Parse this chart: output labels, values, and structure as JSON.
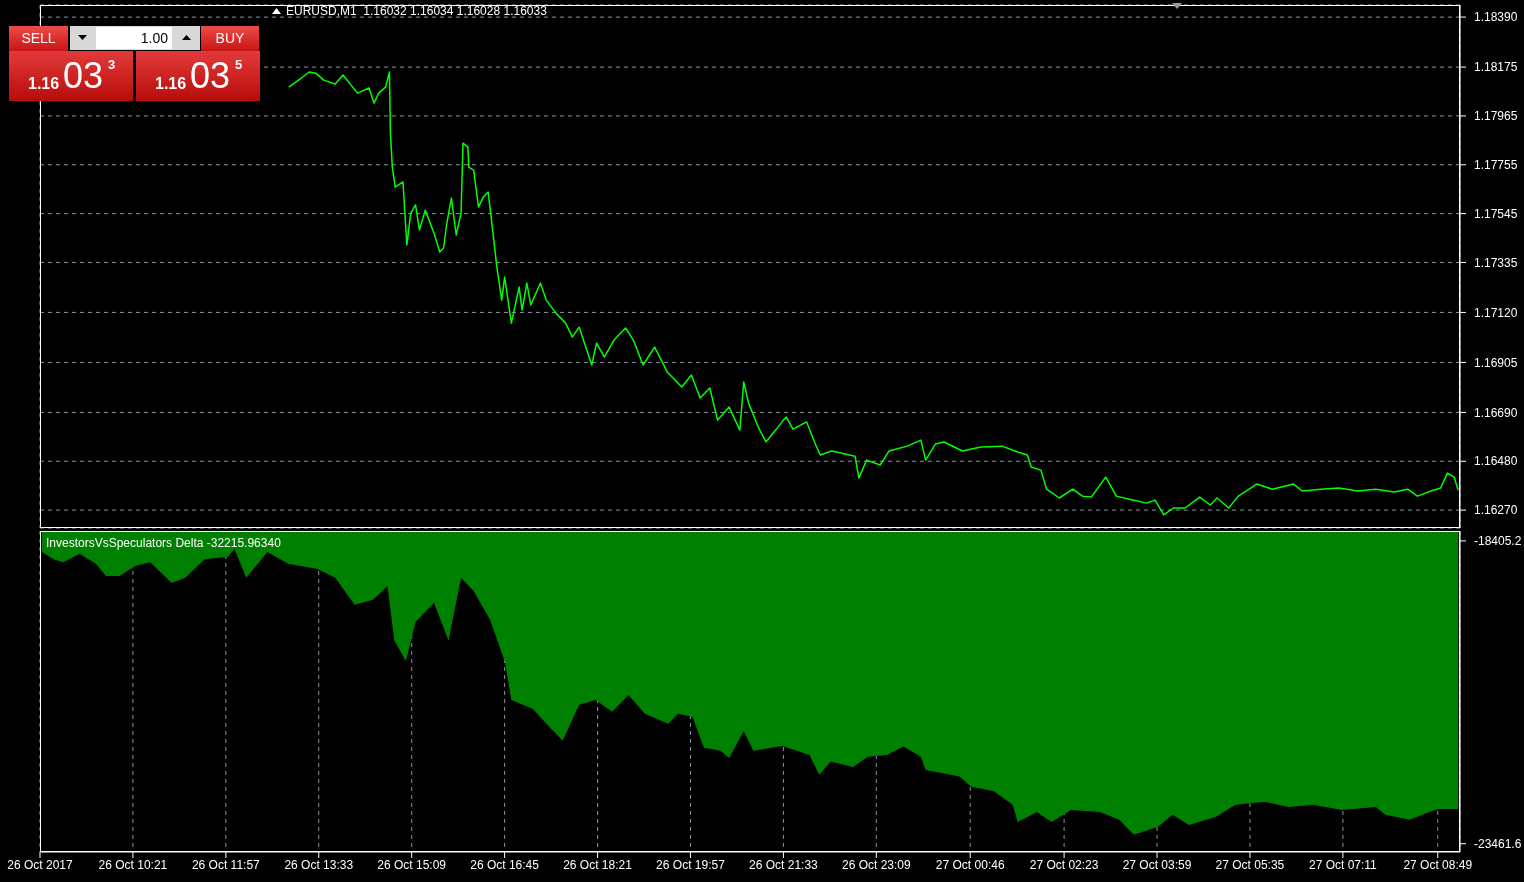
{
  "chart_data": [
    {
      "type": "line",
      "title": "EURUSD,M1  1.16032 1.16034 1.16028 1.16033",
      "color": "#00ff00",
      "grid": true,
      "tick_labels": "y",
      "annotations": [
        "SELL",
        "1.00",
        "BUY",
        "1.16",
        "03",
        "3",
        "1.16",
        "03",
        "5"
      ],
      "xlim": [
        "2017-10-26T08:45",
        "2017-10-27T09:12"
      ],
      "xticks": [
        {
          "value": "2017-10-26T08:45",
          "label": null
        },
        {
          "value": "2017-10-26T10:21",
          "label": null
        },
        {
          "value": "2017-10-26T11:57",
          "label": null
        },
        {
          "value": "2017-10-26T13:33",
          "label": null
        },
        {
          "value": "2017-10-26T15:09",
          "label": null
        },
        {
          "value": "2017-10-26T16:45",
          "label": null
        },
        {
          "value": "2017-10-26T18:21",
          "label": null
        },
        {
          "value": "2017-10-26T19:57",
          "label": null
        },
        {
          "value": "2017-10-26T21:33",
          "label": null
        },
        {
          "value": "2017-10-26T23:09",
          "label": null
        },
        {
          "value": "2017-10-27T00:46",
          "label": null
        },
        {
          "value": "2017-10-27T02:23",
          "label": null
        },
        {
          "value": "2017-10-27T03:59",
          "label": null
        },
        {
          "value": "2017-10-27T05:35",
          "label": null
        },
        {
          "value": "2017-10-27T07:11",
          "label": null
        },
        {
          "value": "2017-10-27T08:49",
          "label": null
        }
      ],
      "ylim": [
        1.16193,
        1.18442
      ],
      "yticks": [
        {
          "value": 1.1839,
          "label": "1.18390"
        },
        1.18175,
        1.17965,
        1.17755,
        1.17545,
        1.17335,
        {
          "value": 1.1712,
          "label": "1.17120"
        },
        1.16905,
        {
          "value": 1.1669,
          "label": "1.16690"
        },
        {
          "value": 1.1648,
          "label": "1.16480"
        },
        {
          "value": 1.1627,
          "label": "1.16270"
        }
      ],
      "x": [
        "2017-10-26T13:02",
        "2017-10-26T13:15",
        "2017-10-26T13:23",
        "2017-10-26T13:30",
        "2017-10-26T13:38",
        "2017-10-26T13:50",
        "2017-10-26T13:58",
        "2017-10-26T14:13",
        "2017-10-26T14:25",
        "2017-10-26T14:30",
        "2017-10-26T14:35",
        "2017-10-26T14:42",
        "2017-10-26T14:46",
        "2017-10-26T14:47",
        "2017-10-26T14:49",
        "2017-10-26T14:52",
        "2017-10-26T15:00",
        "2017-10-26T15:04",
        "2017-10-26T15:08",
        "2017-10-26T15:13",
        "2017-10-26T15:17",
        "2017-10-26T15:23",
        "2017-10-26T15:32",
        "2017-10-26T15:38",
        "2017-10-26T15:42",
        "2017-10-26T15:45",
        "2017-10-26T15:50",
        "2017-10-26T15:55",
        "2017-10-26T16:00",
        "2017-10-26T16:02",
        "2017-10-26T16:07",
        "2017-10-26T16:08",
        "2017-10-26T16:13",
        "2017-10-26T16:18",
        "2017-10-26T16:23",
        "2017-10-26T16:28",
        "2017-10-26T16:33",
        "2017-10-26T16:37",
        "2017-10-26T16:42",
        "2017-10-26T16:45",
        "2017-10-26T16:52",
        "2017-10-26T17:00",
        "2017-10-26T17:03",
        "2017-10-26T17:08",
        "2017-10-26T17:12",
        "2017-10-26T17:22",
        "2017-10-26T17:28",
        "2017-10-26T17:38",
        "2017-10-26T17:48",
        "2017-10-26T17:55",
        "2017-10-26T18:02",
        "2017-10-26T18:15",
        "2017-10-26T18:20",
        "2017-10-26T18:28",
        "2017-10-26T18:38",
        "2017-10-26T18:50",
        "2017-10-26T18:58",
        "2017-10-26T19:08",
        "2017-10-26T19:20",
        "2017-10-26T19:33",
        "2017-10-26T19:48",
        "2017-10-26T19:58",
        "2017-10-26T20:07",
        "2017-10-26T20:17",
        "2017-10-26T20:25",
        "2017-10-26T20:37",
        "2017-10-26T20:48",
        "2017-10-26T20:52",
        "2017-10-26T20:57",
        "2017-10-26T21:07",
        "2017-10-26T21:15",
        "2017-10-26T21:25",
        "2017-10-26T21:33",
        "2017-10-26T21:36",
        "2017-10-26T21:43",
        "2017-10-26T21:57",
        "2017-10-26T22:06",
        "2017-10-26T22:11",
        "2017-10-26T22:23",
        "2017-10-26T22:47",
        "2017-10-26T22:51",
        "2017-10-26T22:59",
        "2017-10-26T23:13",
        "2017-10-26T23:22",
        "2017-10-26T23:41",
        "2017-10-26T23:55",
        "2017-10-27T00:00",
        "2017-10-27T00:10",
        "2017-10-27T00:19",
        "2017-10-27T00:38",
        "2017-10-27T00:57",
        "2017-10-27T01:19",
        "2017-10-27T01:35",
        "2017-10-27T01:45",
        "2017-10-27T01:49",
        "2017-10-27T01:59",
        "2017-10-27T02:05",
        "2017-10-27T02:18",
        "2017-10-27T02:32",
        "2017-10-27T02:42",
        "2017-10-27T02:51",
        "2017-10-27T03:06",
        "2017-10-27T03:17",
        "2017-10-27T03:34",
        "2017-10-27T03:48",
        "2017-10-27T03:57",
        "2017-10-27T04:06",
        "2017-10-27T04:16",
        "2017-10-27T04:28",
        "2017-10-27T04:43",
        "2017-10-27T04:54",
        "2017-10-27T05:01",
        "2017-10-27T05:13",
        "2017-10-27T05:23",
        "2017-10-27T05:42",
        "2017-10-27T05:58",
        "2017-10-27T06:20",
        "2017-10-27T06:29",
        "2017-10-27T06:48",
        "2017-10-27T07:07",
        "2017-10-27T07:26",
        "2017-10-27T07:45",
        "2017-10-27T08:04",
        "2017-10-27T08:18",
        "2017-10-27T08:28",
        "2017-10-27T08:42",
        "2017-10-27T08:52",
        "2017-10-27T08:59",
        "2017-10-27T09:06",
        "2017-10-27T09:10"
      ],
      "values": [
        1.18089,
        1.18128,
        1.18154,
        1.18149,
        1.18119,
        1.18102,
        1.18141,
        1.18063,
        1.18085,
        1.1802,
        1.18063,
        1.18089,
        1.18154,
        1.17891,
        1.17745,
        1.17659,
        1.17681,
        1.1741,
        1.17547,
        1.17582,
        1.17474,
        1.1756,
        1.17461,
        1.1738,
        1.17397,
        1.17496,
        1.17612,
        1.17453,
        1.17547,
        1.17848,
        1.17831,
        1.17745,
        1.17732,
        1.17573,
        1.17616,
        1.17638,
        1.17461,
        1.17315,
        1.17173,
        1.17272,
        1.17074,
        1.17229,
        1.1713,
        1.17246,
        1.17152,
        1.17246,
        1.17173,
        1.17117,
        1.17074,
        1.17014,
        1.17057,
        1.16894,
        1.16988,
        1.16928,
        1.17001,
        1.17053,
        1.17001,
        1.16894,
        1.16971,
        1.16864,
        1.16799,
        1.16851,
        1.16752,
        1.16795,
        1.16657,
        1.16713,
        1.16614,
        1.16821,
        1.1673,
        1.16627,
        1.16563,
        1.16614,
        1.16657,
        1.1667,
        1.16618,
        1.16649,
        1.16554,
        1.16507,
        1.16524,
        1.16502,
        1.16408,
        1.16485,
        1.16464,
        1.16524,
        1.16545,
        1.16571,
        1.16485,
        1.16554,
        1.16563,
        1.16524,
        1.16541,
        1.16545,
        1.1652,
        1.16507,
        1.16455,
        1.16442,
        1.1636,
        1.16322,
        1.1636,
        1.1633,
        1.16326,
        1.16412,
        1.1633,
        1.16313,
        1.163,
        1.16313,
        1.16249,
        1.16279,
        1.16279,
        1.16326,
        1.16292,
        1.16322,
        1.16279,
        1.1633,
        1.16382,
        1.1636,
        1.16382,
        1.16352,
        1.1636,
        1.16365,
        1.16352,
        1.1636,
        1.16348,
        1.1636,
        1.1633,
        1.16352,
        1.16365,
        1.16429,
        1.16412,
        1.16356
      ]
    },
    {
      "type": "area",
      "title": "InvestorsVsSpeculators Delta -32215.96340",
      "color": "#008000",
      "grid": "x",
      "xlim": [
        "2017-10-26T08:45",
        "2017-10-27T09:12"
      ],
      "xticks": [
        {
          "value": "2017-10-26T08:45",
          "label": "26 Oct 2017"
        },
        {
          "value": "2017-10-26T10:21",
          "label": "26 Oct 10:21"
        },
        {
          "value": "2017-10-26T11:57",
          "label": "26 Oct 11:57"
        },
        {
          "value": "2017-10-26T13:33",
          "label": "26 Oct 13:33"
        },
        {
          "value": "2017-10-26T15:09",
          "label": "26 Oct 15:09"
        },
        {
          "value": "2017-10-26T16:45",
          "label": "26 Oct 16:45"
        },
        {
          "value": "2017-10-26T18:21",
          "label": "26 Oct 18:21"
        },
        {
          "value": "2017-10-26T19:57",
          "label": "26 Oct 19:57"
        },
        {
          "value": "2017-10-26T21:33",
          "label": "26 Oct 21:33"
        },
        {
          "value": "2017-10-26T23:09",
          "label": "26 Oct 23:09"
        },
        {
          "value": "2017-10-27T00:46",
          "label": "27 Oct 00:46"
        },
        {
          "value": "2017-10-27T02:23",
          "label": "27 Oct 02:23"
        },
        {
          "value": "2017-10-27T03:59",
          "label": "27 Oct 03:59"
        },
        {
          "value": "2017-10-27T05:35",
          "label": "27 Oct 05:35"
        },
        {
          "value": "2017-10-27T07:11",
          "label": "27 Oct 07:11"
        },
        {
          "value": "2017-10-27T08:49",
          "label": "27 Oct 08:49"
        }
      ],
      "ylim": [
        -23600,
        -18240
      ],
      "yticks": [
        -18405.2,
        -23461.6
      ],
      "x": [
        "2017-10-26T08:47",
        "2017-10-26T08:59",
        "2017-10-26T09:09",
        "2017-10-26T09:26",
        "2017-10-26T09:43",
        "2017-10-26T09:53",
        "2017-10-26T10:07",
        "2017-10-26T10:24",
        "2017-10-26T10:39",
        "2017-10-26T11:01",
        "2017-10-26T11:15",
        "2017-10-26T11:35",
        "2017-10-26T11:59",
        "2017-10-26T12:06",
        "2017-10-26T12:18",
        "2017-10-26T12:40",
        "2017-10-26T13:02",
        "2017-10-26T13:31",
        "2017-10-26T13:50",
        "2017-10-26T14:10",
        "2017-10-26T14:29",
        "2017-10-26T14:44",
        "2017-10-26T14:51",
        "2017-10-26T15:03",
        "2017-10-26T15:13",
        "2017-10-26T15:32",
        "2017-10-26T15:47",
        "2017-10-26T16:00",
        "2017-10-26T16:13",
        "2017-10-26T16:30",
        "2017-10-26T16:45",
        "2017-10-26T16:52",
        "2017-10-26T17:14",
        "2017-10-26T17:33",
        "2017-10-26T17:45",
        "2017-10-26T18:02",
        "2017-10-26T18:19",
        "2017-10-26T18:36",
        "2017-10-26T18:53",
        "2017-10-26T19:10",
        "2017-10-26T19:34",
        "2017-10-26T19:44",
        "2017-10-26T19:59",
        "2017-10-26T20:11",
        "2017-10-26T20:28",
        "2017-10-26T20:37",
        "2017-10-26T20:52",
        "2017-10-26T21:02",
        "2017-10-26T21:32",
        "2017-10-26T22:00",
        "2017-10-26T22:10",
        "2017-10-26T22:22",
        "2017-10-26T22:45",
        "2017-10-26T23:00",
        "2017-10-26T23:20",
        "2017-10-26T23:37",
        "2017-10-26T23:55",
        "2017-10-27T00:00",
        "2017-10-27T00:35",
        "2017-10-27T00:47",
        "2017-10-27T01:10",
        "2017-10-27T01:30",
        "2017-10-27T01:35",
        "2017-10-27T01:55",
        "2017-10-27T02:10",
        "2017-10-27T02:30",
        "2017-10-27T03:00",
        "2017-10-27T03:20",
        "2017-10-27T03:35",
        "2017-10-27T04:00",
        "2017-10-27T04:15",
        "2017-10-27T04:32",
        "2017-10-27T05:00",
        "2017-10-27T05:20",
        "2017-10-27T05:50",
        "2017-10-27T06:15",
        "2017-10-27T06:40",
        "2017-10-27T07:10",
        "2017-10-27T07:45",
        "2017-10-27T07:55",
        "2017-10-27T08:20",
        "2017-10-27T08:40",
        "2017-10-27T08:50",
        "2017-10-27T09:10"
      ],
      "values": [
        -18590,
        -18710,
        -18760,
        -18620,
        -18790,
        -18990,
        -18990,
        -18820,
        -18760,
        -19110,
        -19020,
        -18710,
        -18670,
        -18540,
        -19020,
        -18590,
        -18790,
        -18870,
        -19020,
        -19470,
        -19390,
        -19160,
        -20070,
        -20410,
        -19760,
        -19440,
        -20070,
        -19020,
        -19240,
        -19720,
        -20410,
        -21060,
        -21210,
        -21540,
        -21740,
        -21140,
        -21060,
        -21260,
        -20980,
        -21290,
        -21460,
        -21290,
        -21340,
        -21860,
        -21910,
        -22030,
        -21580,
        -21910,
        -21830,
        -21980,
        -22310,
        -22090,
        -22180,
        -22010,
        -21980,
        -21840,
        -22010,
        -22230,
        -22340,
        -22510,
        -22580,
        -22810,
        -23100,
        -22930,
        -23100,
        -22900,
        -22930,
        -23060,
        -23310,
        -23180,
        -22980,
        -23150,
        -23010,
        -22810,
        -22760,
        -22850,
        -22810,
        -22900,
        -22850,
        -22980,
        -23060,
        -22930,
        -22880,
        -22880
      ]
    }
  ]
}
